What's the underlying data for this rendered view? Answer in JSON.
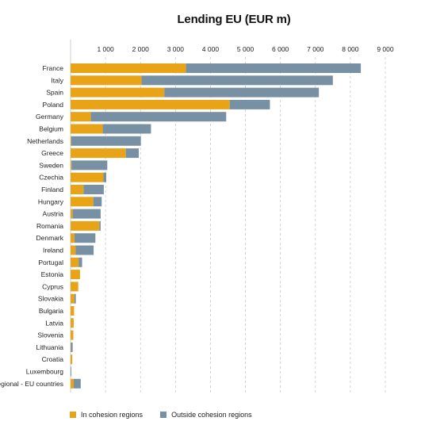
{
  "chart_data": {
    "type": "bar",
    "orientation": "horizontal",
    "stacked": true,
    "title": "Lending EU (EUR m)",
    "xlabel": "",
    "ylabel": "",
    "xlim": [
      0,
      9000
    ],
    "xticks": [
      1000,
      2000,
      3000,
      4000,
      5000,
      6000,
      7000,
      8000,
      9000
    ],
    "xtick_labels": [
      "1 000",
      "2 000",
      "3 000",
      "4 000",
      "5 000",
      "6 000",
      "7 000",
      "8 000",
      "9 000"
    ],
    "grid": "vertical-dashed",
    "legend_position": "bottom-left",
    "categories": [
      "France",
      "Italy",
      "Spain",
      "Poland",
      "Germany",
      "Belgium",
      "Netherlands",
      "Greece",
      "Sweden",
      "Czechia",
      "Finland",
      "Hungary",
      "Austria",
      "Romania",
      "Denmark",
      "Ireland",
      "Portugal",
      "Estonia",
      "Cyprus",
      "Slovakia",
      "Bulgaria",
      "Latvia",
      "Slovenia",
      "Lithuania",
      "Croatia",
      "Luxembourg",
      "Regional - EU countries"
    ],
    "series": [
      {
        "name": "In cohesion regions",
        "color": "#E8A317",
        "values": [
          3300,
          2030,
          2680,
          4550,
          580,
          920,
          20,
          1580,
          30,
          940,
          370,
          650,
          60,
          820,
          110,
          140,
          230,
          270,
          220,
          110,
          100,
          90,
          80,
          10,
          50,
          0,
          90
        ]
      },
      {
        "name": "Outside cohesion regions",
        "color": "#7890A4",
        "values": [
          5000,
          5470,
          4420,
          1150,
          3870,
          1380,
          1990,
          370,
          1020,
          80,
          580,
          240,
          800,
          40,
          600,
          520,
          100,
          0,
          0,
          40,
          0,
          0,
          0,
          50,
          0,
          20,
          200
        ]
      }
    ]
  }
}
